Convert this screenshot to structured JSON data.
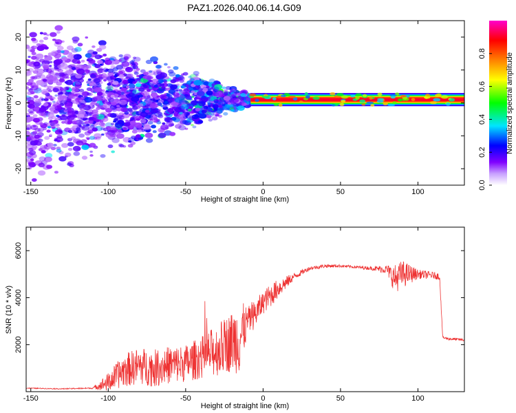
{
  "title": "PAZ1.2026.040.06.14.G09",
  "chart_data": [
    {
      "type": "heatmap",
      "title": "PAZ1.2026.040.06.14.G09",
      "xlabel": "Height of straight line (km)",
      "ylabel": "Frequency (Hz)",
      "xlim": [
        -153,
        130
      ],
      "ylim": [
        -25,
        25
      ],
      "xticks": [
        "-150",
        "-100",
        "-50",
        "0",
        "50",
        "100"
      ],
      "yticks": [
        "20",
        "10",
        "0",
        "-10",
        "-20"
      ],
      "colorbar": {
        "label": "Normalized spectral amplitude",
        "range": [
          0,
          1
        ],
        "ticks": [
          "0.0",
          "0.2",
          "0.4",
          "0.6",
          "0.8"
        ],
        "colors": [
          "#ffffff",
          "#8000ff",
          "#0000ff",
          "#00e5ff",
          "#00ff00",
          "#ffff00",
          "#ff8000",
          "#ff0000",
          "#ff00cc"
        ]
      },
      "signal": {
        "center_frequency_hz": 1,
        "band_start_km": 0,
        "band_end_km": 130,
        "note": "spread energy for heights below 0 km narrowing toward ~1 Hz line"
      }
    },
    {
      "type": "line",
      "xlabel": "Height of straight line (km)",
      "ylabel": "SNR (10 * v/v)",
      "xlim": [
        -153,
        130
      ],
      "ylim": [
        0,
        7000
      ],
      "xticks": [
        "-150",
        "-100",
        "-50",
        "0",
        "50",
        "100"
      ],
      "yticks": [
        "2000",
        "4000",
        "6000"
      ],
      "line_color": "#ee3333",
      "series": [
        {
          "name": "SNR",
          "x": [
            -153,
            -130,
            -110,
            -100,
            -90,
            -80,
            -70,
            -60,
            -50,
            -40,
            -30,
            -20,
            -15,
            -10,
            -5,
            0,
            5,
            10,
            20,
            30,
            40,
            50,
            60,
            70,
            80,
            85,
            90,
            100,
            110,
            114,
            116,
            120,
            130
          ],
          "y": [
            150,
            120,
            150,
            400,
            900,
            1100,
            1000,
            1150,
            1200,
            1450,
            1750,
            2150,
            2300,
            3000,
            3300,
            3800,
            4100,
            4400,
            4900,
            5250,
            5350,
            5350,
            5300,
            5250,
            5200,
            4800,
            5000,
            5000,
            4950,
            4900,
            2300,
            2250,
            2200
          ],
          "noise": [
            20,
            20,
            30,
            400,
            700,
            800,
            800,
            800,
            800,
            900,
            1100,
            1300,
            1600,
            600,
            600,
            500,
            500,
            400,
            150,
            80,
            80,
            60,
            60,
            80,
            200,
            600,
            600,
            200,
            150,
            150,
            60,
            60,
            60
          ]
        }
      ]
    }
  ]
}
